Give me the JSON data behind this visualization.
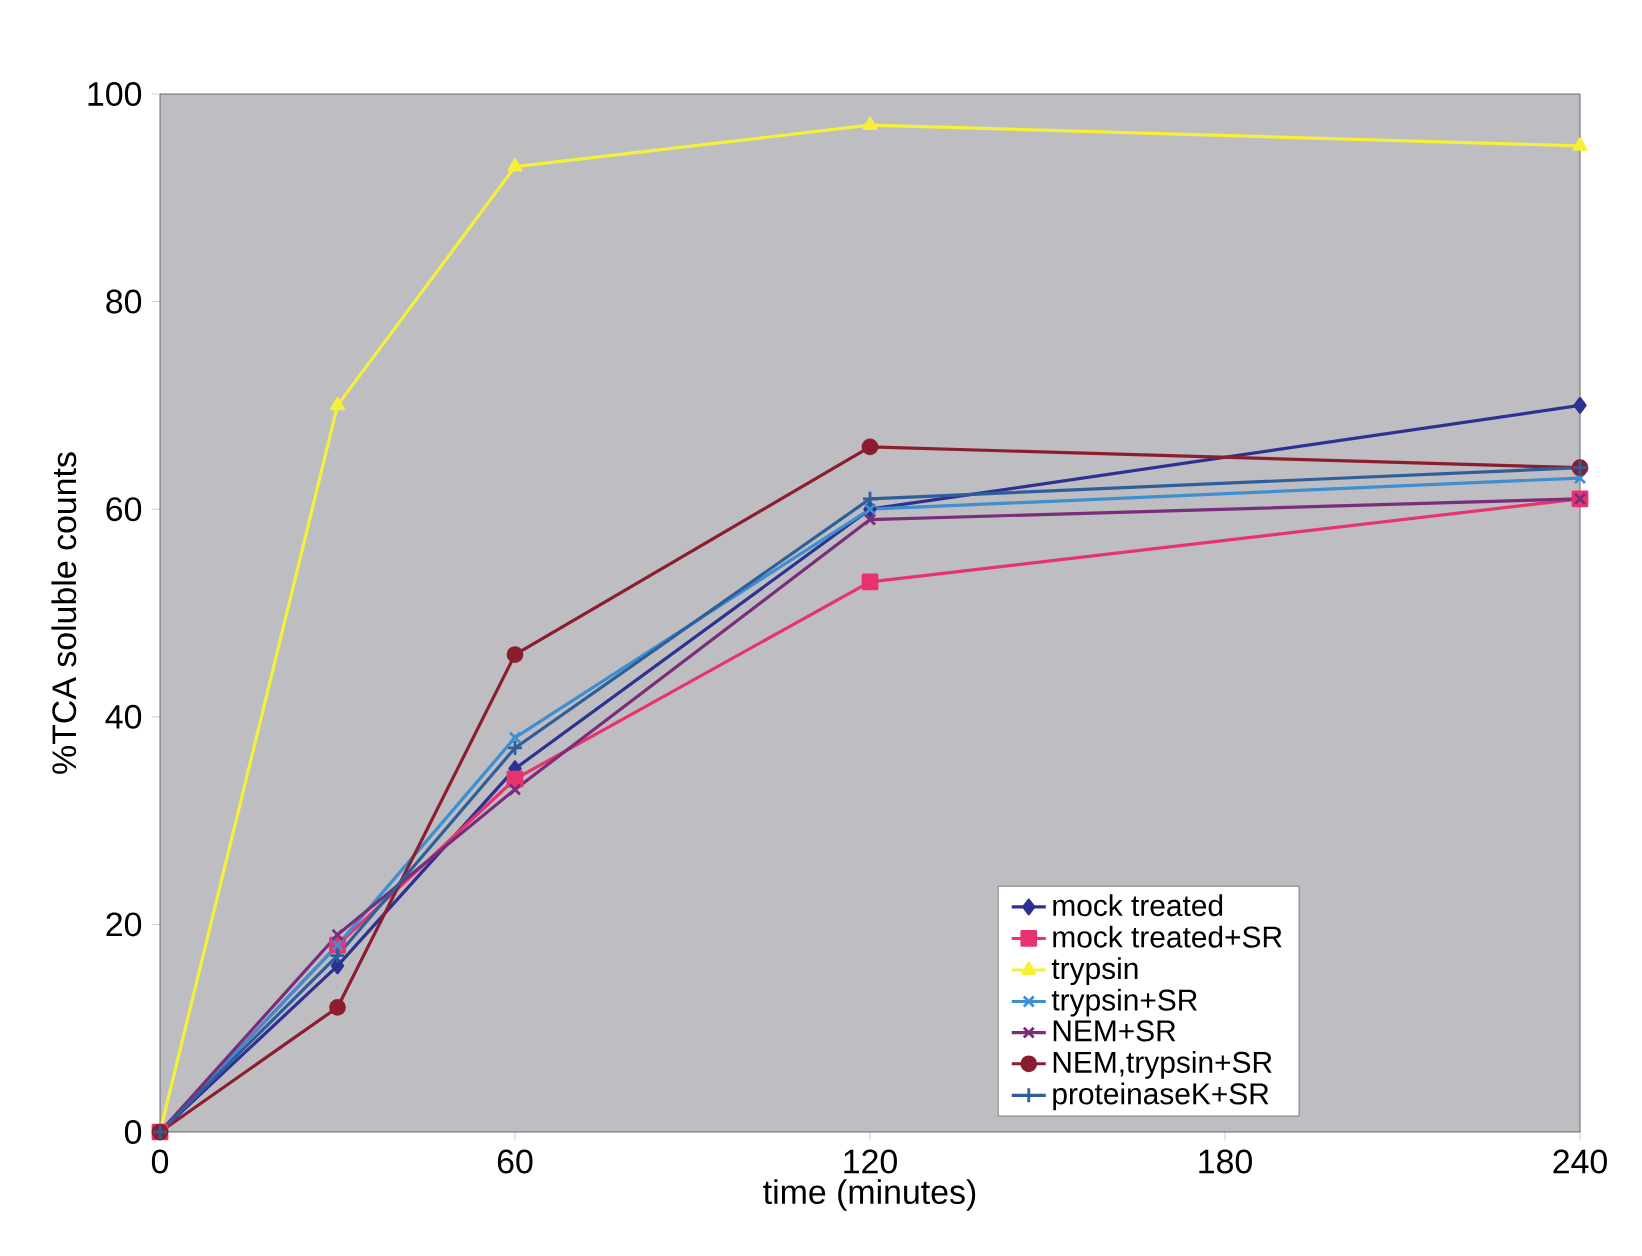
{
  "chart_data": {
    "type": "line",
    "xlabel": "time (minutes)",
    "ylabel": "%TCA soluble counts",
    "x": [
      0,
      30,
      60,
      120,
      240
    ],
    "xlim": [
      0,
      240
    ],
    "xticks": [
      0,
      60,
      120,
      180,
      240
    ],
    "ylim": [
      0,
      100
    ],
    "yticks": [
      0,
      20,
      40,
      60,
      80,
      100
    ],
    "grid": false,
    "legend": "bottom right",
    "line_style": "solid",
    "series": [
      {
        "name": "mock  treated",
        "color": "#2e3192",
        "marker": "diamond",
        "values": [
          0,
          16,
          35,
          60,
          70
        ]
      },
      {
        "name": "mock  treated+SR",
        "color": "#e8336e",
        "marker": "square",
        "values": [
          0,
          18,
          34,
          53,
          61
        ]
      },
      {
        "name": "trypsin",
        "color": "#f5f03a",
        "marker": "triangle",
        "values": [
          0,
          70,
          93,
          97,
          95
        ]
      },
      {
        "name": "trypsin+SR",
        "color": "#3d8fd1",
        "marker": "cross",
        "values": [
          0,
          18,
          38,
          60,
          63
        ]
      },
      {
        "name": "NEM+SR",
        "color": "#7a2d7a",
        "marker": "cross",
        "values": [
          0,
          19,
          33,
          59,
          61
        ]
      },
      {
        "name": "NEM,trypsin+SR",
        "color": "#8b1e2e",
        "marker": "circle",
        "values": [
          0,
          12,
          46,
          66,
          64
        ]
      },
      {
        "name": "proteinaseK+SR",
        "color": "#2f5f9a",
        "marker": "plus",
        "values": [
          0,
          17,
          37,
          61,
          64
        ]
      }
    ]
  }
}
